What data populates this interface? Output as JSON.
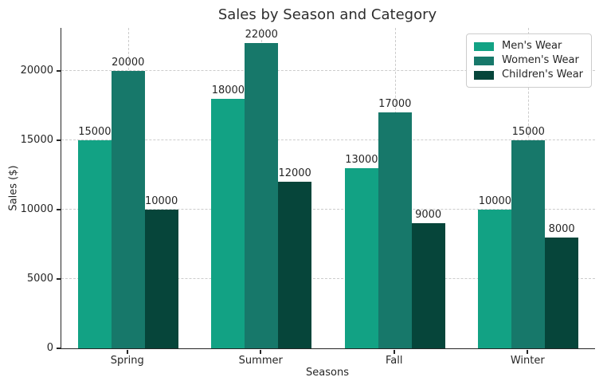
{
  "chart_data": {
    "type": "bar",
    "title": "Sales by Season and Category",
    "xlabel": "Seasons",
    "ylabel": "Sales ($)",
    "categories": [
      "Spring",
      "Summer",
      "Fall",
      "Winter"
    ],
    "series": [
      {
        "name": "Men's Wear",
        "color": "#12A284",
        "values": [
          15000,
          18000,
          13000,
          10000
        ]
      },
      {
        "name": "Women's Wear",
        "color": "#17786A",
        "values": [
          20000,
          22000,
          17000,
          15000
        ]
      },
      {
        "name": "Children's Wear",
        "color": "#06453A",
        "values": [
          10000,
          12000,
          9000,
          8000
        ]
      }
    ],
    "yticks": [
      0,
      5000,
      10000,
      15000,
      20000
    ],
    "ylim": [
      0,
      23100
    ],
    "bar_group_width": 0.75,
    "grid": true,
    "grid_style": "dashed",
    "grid_color": "#cccccc",
    "legend_position": "upper right",
    "bar_value_labels": true,
    "text_color": "#262626",
    "background": "#ffffff"
  }
}
